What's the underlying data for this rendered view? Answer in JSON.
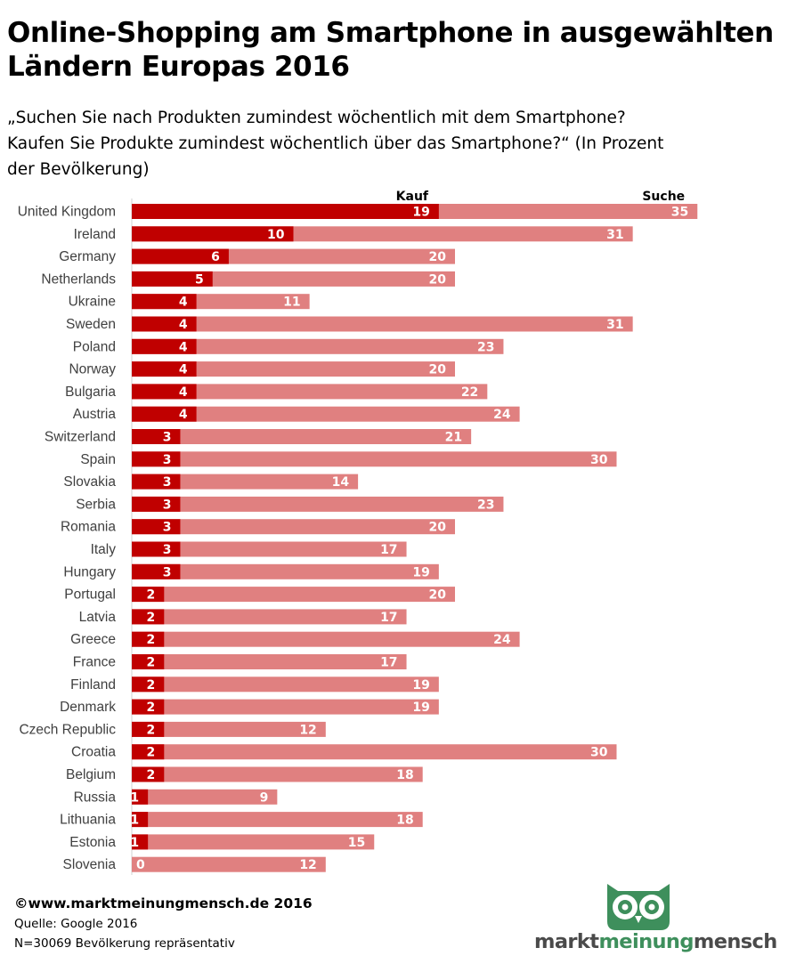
{
  "header": {
    "title": "Online-Shopping am Smartphone in ausgewählten Ländern Europas 2016",
    "subtitle": "„Suchen Sie nach Produkten zumindest wöchentlich mit dem Smartphone?\nKaufen Sie Produkte zumindest wöchentlich über das Smartphone?“ (In Prozent\nder Bevölkerung)"
  },
  "chart_data": {
    "type": "bar",
    "orientation": "horizontal",
    "categories": [
      "United Kingdom",
      "Ireland",
      "Germany",
      "Netherlands",
      "Ukraine",
      "Sweden",
      "Poland",
      "Norway",
      "Bulgaria",
      "Austria",
      "Switzerland",
      "Spain",
      "Slovakia",
      "Serbia",
      "Romania",
      "Italy",
      "Hungary",
      "Portugal",
      "Latvia",
      "Greece",
      "France",
      "Finland",
      "Denmark",
      "Czech Republic",
      "Croatia",
      "Belgium",
      "Russia",
      "Lithuania",
      "Estonia",
      "Slovenia"
    ],
    "series": [
      {
        "name": "Kauf",
        "color": "#c00000",
        "values": [
          19,
          10,
          6,
          5,
          4,
          4,
          4,
          4,
          4,
          4,
          3,
          3,
          3,
          3,
          3,
          3,
          3,
          2,
          2,
          2,
          2,
          2,
          2,
          2,
          2,
          2,
          1,
          1,
          1,
          0
        ]
      },
      {
        "name": "Suche",
        "color": "#e08080",
        "values": [
          35,
          31,
          20,
          20,
          11,
          31,
          23,
          20,
          22,
          24,
          21,
          30,
          14,
          23,
          20,
          17,
          19,
          20,
          17,
          24,
          17,
          19,
          19,
          12,
          30,
          18,
          9,
          18,
          15,
          12
        ]
      }
    ],
    "overlay": true,
    "data_labels": true,
    "legend_placement": "above bars",
    "xlim": [
      0,
      35
    ],
    "grid": false
  },
  "footer": {
    "copyright": "©www.marktmeinungmensch.de 2016",
    "source": "Quelle: Google 2016",
    "sample": "N=30069 Bevölkerung repräsentativ"
  },
  "logo": {
    "word1": "markt",
    "word2": "meinung",
    "word3": "mensch",
    "icon": "owl-icon",
    "color": "#3e8f5c"
  }
}
